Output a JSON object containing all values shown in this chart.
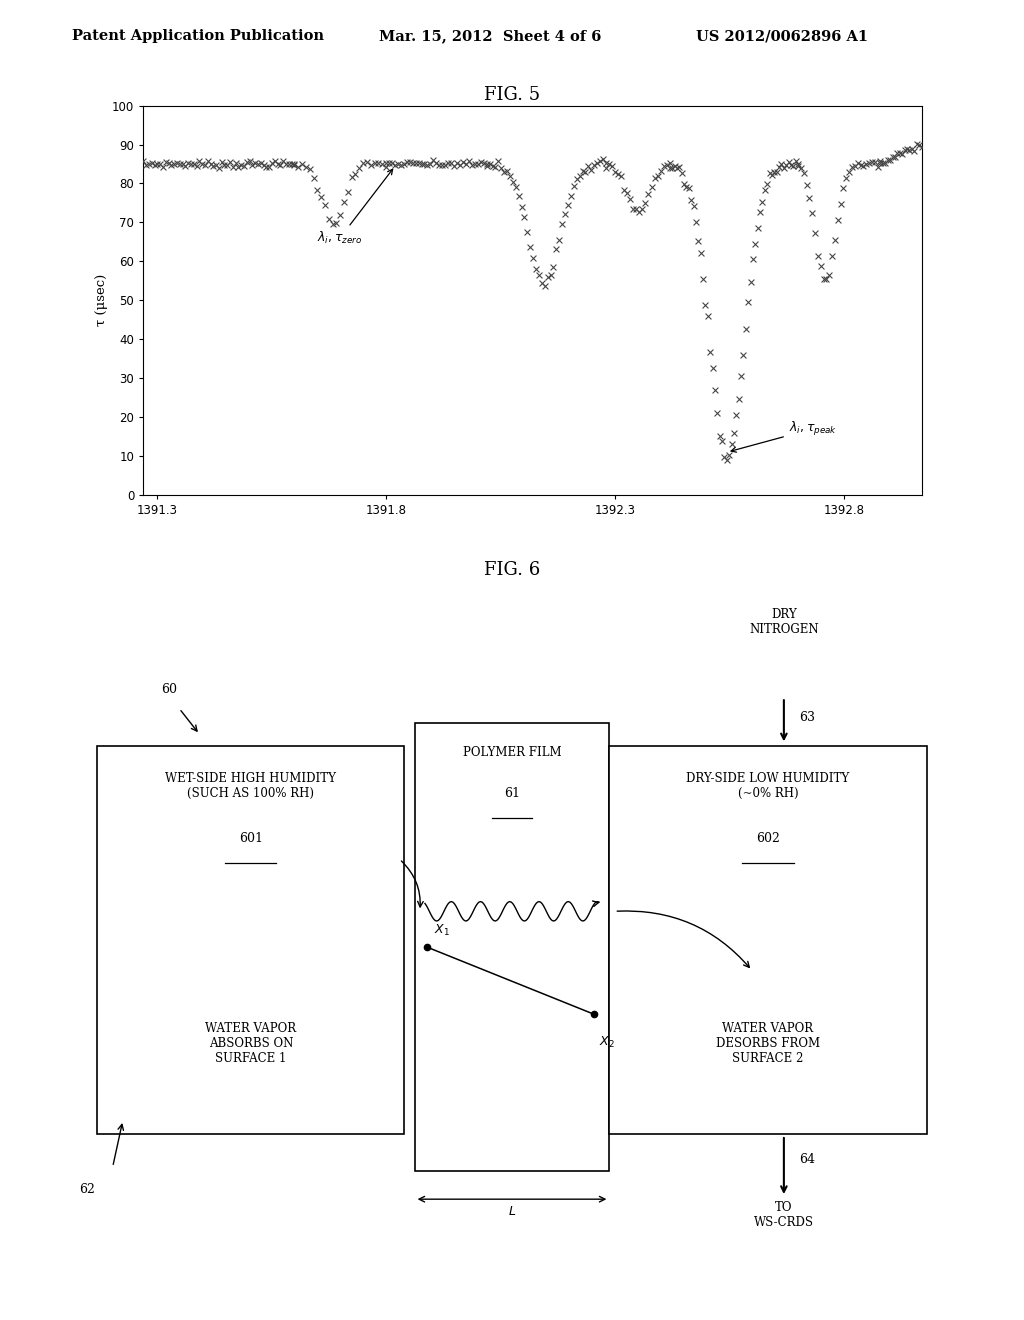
{
  "header_left": "Patent Application Publication",
  "header_mid": "Mar. 15, 2012  Sheet 4 of 6",
  "header_right": "US 2012/0062896 A1",
  "fig5_title": "FIG. 5",
  "fig5_ylabel": "τ (μsec)",
  "fig5_yticks": [
    0,
    10,
    20,
    30,
    40,
    50,
    60,
    70,
    80,
    90,
    100
  ],
  "fig5_xticks": [
    1391.3,
    1391.8,
    1392.3,
    1392.8
  ],
  "fig5_xlim": [
    1391.27,
    1392.97
  ],
  "fig5_ylim": [
    0,
    100
  ],
  "fig6_title": "FIG. 6",
  "bg_color": "#ffffff"
}
